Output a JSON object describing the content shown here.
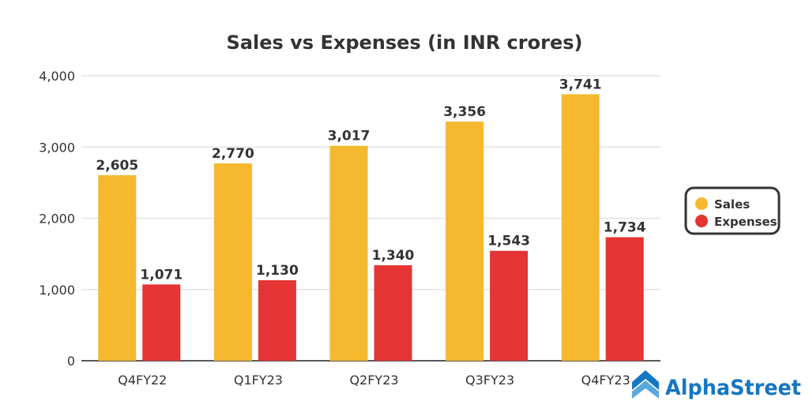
{
  "chart_data": {
    "type": "bar",
    "title": "Sales vs Expenses (in INR crores)",
    "categories": [
      "Q4FY22",
      "Q1FY23",
      "Q2FY23",
      "Q3FY23",
      "Q4FY23"
    ],
    "series": [
      {
        "name": "Sales",
        "color": "#F5B82E",
        "values": [
          2605,
          2770,
          3017,
          3356,
          3741
        ],
        "labels": [
          "2,605",
          "2,770",
          "3,017",
          "3,356",
          "3,741"
        ]
      },
      {
        "name": "Expenses",
        "color": "#E53434",
        "values": [
          1071,
          1130,
          1340,
          1543,
          1734
        ],
        "labels": [
          "1,071",
          "1,130",
          "1,340",
          "1,543",
          "1,734"
        ]
      }
    ],
    "ylim": [
      0,
      4000
    ],
    "yticks": [
      0,
      1000,
      2000,
      3000,
      4000
    ],
    "ytick_labels": [
      "0",
      "1,000",
      "2,000",
      "3,000",
      "4,000"
    ],
    "grid": true,
    "legend": "right"
  },
  "logo": {
    "text": "AlphaStreet",
    "color": "#1577C2"
  }
}
